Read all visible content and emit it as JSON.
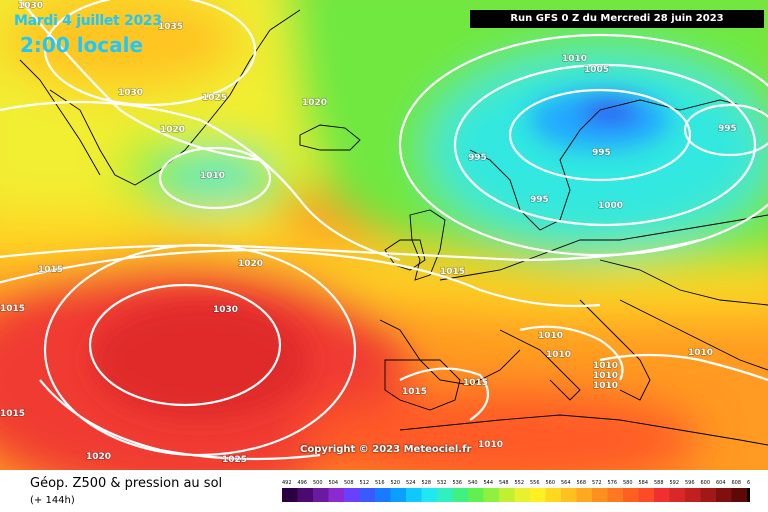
{
  "header": {
    "date": "Mardi 4 juillet 2023",
    "time": "2:00 locale",
    "run": "Run GFS 0 Z du Mercredi 28 juin 2023"
  },
  "copyright": "Copyright © 2023 Meteociel.fr",
  "footer": {
    "title": "Géop. Z500 & pression au sol",
    "subtitle": "(+ 144h)"
  },
  "legend": {
    "ticks": [
      "492",
      "496",
      "500",
      "504",
      "508",
      "512",
      "516",
      "520",
      "524",
      "528",
      "532",
      "536",
      "540",
      "544",
      "548",
      "552",
      "556",
      "560",
      "564",
      "568",
      "572",
      "576",
      "580",
      "584",
      "588",
      "592",
      "596",
      "600",
      "604",
      "608",
      "612"
    ],
    "colors": [
      "#2a0040",
      "#4a0a70",
      "#6a1aa0",
      "#8a2ad0",
      "#6a40ff",
      "#3a5aff",
      "#1a7aff",
      "#0aa0ff",
      "#10c8ff",
      "#20e8f0",
      "#30f0c0",
      "#40f080",
      "#60f050",
      "#90f040",
      "#c0f030",
      "#e8f030",
      "#fff020",
      "#ffd820",
      "#ffc020",
      "#ffa820",
      "#ff9020",
      "#ff7820",
      "#ff6020",
      "#ff4a28",
      "#f03030",
      "#d82828",
      "#c02020",
      "#a01818",
      "#801010",
      "#600808",
      "#000000"
    ]
  },
  "isobars": [
    {
      "text": "1030"
    },
    {
      "text": "1035"
    },
    {
      "text": "1030"
    },
    {
      "text": "1025"
    },
    {
      "text": "1020"
    },
    {
      "text": "1020"
    },
    {
      "text": "1010"
    },
    {
      "text": "1010"
    },
    {
      "text": "1005"
    },
    {
      "text": "995"
    },
    {
      "text": "995"
    },
    {
      "text": "995"
    },
    {
      "text": "995"
    },
    {
      "text": "1000"
    },
    {
      "text": "1015"
    },
    {
      "text": "1020"
    },
    {
      "text": "1015"
    },
    {
      "text": "1015"
    },
    {
      "text": "1030"
    },
    {
      "text": "1015"
    },
    {
      "text": "1015"
    },
    {
      "text": "1015"
    },
    {
      "text": "1010"
    },
    {
      "text": "1010"
    },
    {
      "text": "1010"
    },
    {
      "text": "1010"
    },
    {
      "text": "1010"
    },
    {
      "text": "1010"
    },
    {
      "text": "1010"
    },
    {
      "text": "1020"
    },
    {
      "text": "1025"
    }
  ]
}
